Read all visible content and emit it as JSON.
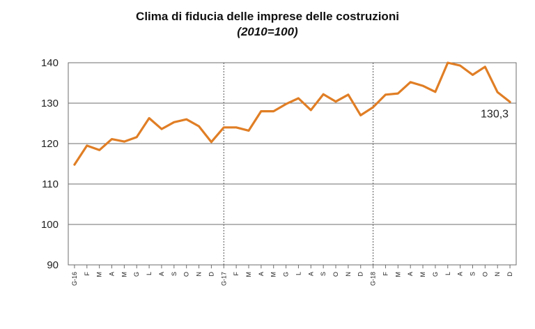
{
  "chart_data": {
    "type": "line",
    "title": "Clima di fiducia delle imprese delle costruzioni",
    "subtitle": "(2010=100)",
    "xlabel": "",
    "ylabel": "",
    "ylim": [
      90,
      140
    ],
    "yticks": [
      "90",
      "100",
      "110",
      "120",
      "130",
      "140"
    ],
    "categories": [
      "G-16",
      "F",
      "M",
      "A",
      "M",
      "G",
      "L",
      "A",
      "S",
      "O",
      "N",
      "D",
      "G-17",
      "F",
      "M",
      "A",
      "M",
      "G",
      "L",
      "A",
      "S",
      "O",
      "N",
      "D",
      "G-18",
      "F",
      "M",
      "A",
      "M",
      "G",
      "L",
      "A",
      "S",
      "O",
      "N",
      "D"
    ],
    "series": [
      {
        "color": "#E07E25",
        "values": [
          114.8,
          119.5,
          118.4,
          121.1,
          120.5,
          121.6,
          126.3,
          123.6,
          125.3,
          126.0,
          124.3,
          120.4,
          124.0,
          124.0,
          123.2,
          128.0,
          128.0,
          129.8,
          131.2,
          128.3,
          132.2,
          130.4,
          132.1,
          127.0,
          129.0,
          132.1,
          132.4,
          135.2,
          134.3,
          132.8,
          140.0,
          139.3,
          137.0,
          139.0,
          132.7,
          130.3
        ]
      }
    ],
    "annotations": [
      {
        "text": "130,3"
      }
    ],
    "grid": true,
    "year_separators_at": [
      "G-17",
      "G-18"
    ]
  }
}
